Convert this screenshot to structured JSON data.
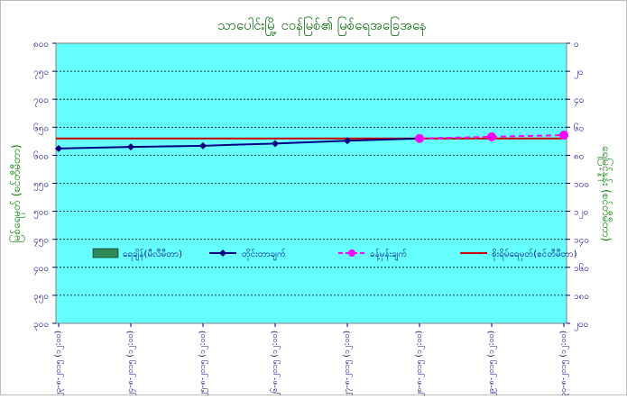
{
  "chart_data": {
    "type": "line",
    "title": "သာပေါင်းမြို့ ငဝန်မြစ်၏ မြစ်ရေအခြေအနေ",
    "ylabel_left": "မြစ်ရေမှတ် (စင်တီမီတာ)",
    "ylabel_right": "ရေမြင့်နှုန်း (စင်တီမီတာ)",
    "ylim_left": [
      300,
      800
    ],
    "ylim_right": [
      -200,
      0
    ],
    "yticks_left": [
      "၈၀၀",
      "၇၅၀",
      "၇၀၀",
      "၆၅၀",
      "၆၀၀",
      "၅၅၀",
      "၅၀၀",
      "၄၅၀",
      "၄၀၀",
      "၃၅၀",
      "၃၀၀"
    ],
    "yticks_right": [
      "၀",
      "၂၀",
      "၄၀",
      "၆၀",
      "၈၀",
      "၁၀၀",
      "၁၂၀",
      "၁၄၀",
      "၁၆၀",
      "၁၈၀",
      "၂၀၀"
    ],
    "categories": [
      "၂၃-၈-၂၀၁၅ (၁၂:၀၀)",
      "၂၄-၈-၂၀၁၅ (၁၂:၀၀)",
      "၂၅-၈-၂၀၁၅ (၁၂:၀၀)",
      "၂၆-၈-၂၀၁၅ (၁၂:၀၀)",
      "၂၇-၈-၂၀၁၅ (၁၂:၀၀)",
      "၂၈-၈-၂၀၁၅ (၁၂:၀၀)",
      "၂၉-၈-၂၀၁၅ (၁၂:၀၀)",
      "၃၀-၈-၂၀၁၅ (၁၂:၀၀)"
    ],
    "series": [
      {
        "name": "ရေချိန်(မီလီမီတာ)",
        "type": "bar",
        "color": "#2e8b57",
        "values": [
          null,
          null,
          null,
          null,
          null,
          null,
          null,
          null
        ]
      },
      {
        "name": "တိုင်းတာချက်",
        "type": "line",
        "color": "#000080",
        "marker": "diamond",
        "values": [
          612,
          615,
          617,
          621,
          626,
          630,
          null,
          null
        ]
      },
      {
        "name": "ခန့်မှန်းချက်",
        "type": "line-dashed",
        "color": "#ff00ff",
        "marker": "circle",
        "values": [
          null,
          null,
          null,
          null,
          null,
          630,
          633,
          636
        ]
      },
      {
        "name": "စိုးရိမ်ရေမှတ်(စင်တီမီတာ)",
        "type": "reference",
        "color": "#cc0000",
        "value": 630
      }
    ],
    "legend_position": "center-left",
    "grid": "horizontal-dotted",
    "colors": {
      "plot_background": "#66ffff",
      "title": "#006600",
      "axis_label": "#008000",
      "tick": "#000080"
    }
  }
}
